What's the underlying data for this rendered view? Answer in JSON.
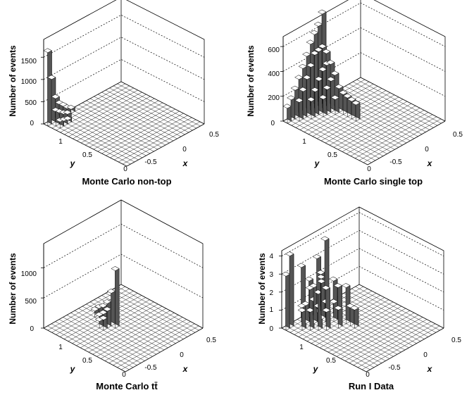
{
  "charts": [
    {
      "title": "Monte Carlo non-top",
      "zlabel": "Number of events",
      "ylabel": "y",
      "xlabel": "x",
      "y_ticks": [
        "0",
        "0.5",
        "1"
      ],
      "x_ticks": [
        "-0.5",
        "0",
        "0.5"
      ],
      "z_ticks": [
        "0",
        "500",
        "1000",
        "1500"
      ]
    },
    {
      "title": "Monte Carlo single top",
      "zlabel": "Number of events",
      "ylabel": "y",
      "xlabel": "x",
      "y_ticks": [
        "0",
        "0.5",
        "1"
      ],
      "x_ticks": [
        "-0.5",
        "0",
        "0.5"
      ],
      "z_ticks": [
        "0",
        "200",
        "400",
        "600"
      ]
    },
    {
      "title": "Monte Carlo tt̄",
      "zlabel": "Number of events",
      "ylabel": "y",
      "xlabel": "x",
      "y_ticks": [
        "0",
        "0.5",
        "1"
      ],
      "x_ticks": [
        "-0.5",
        "0",
        "0.5"
      ],
      "z_ticks": [
        "0",
        "500",
        "1000"
      ]
    },
    {
      "title": "Run I Data",
      "zlabel": "Number of events",
      "ylabel": "y",
      "xlabel": "x",
      "y_ticks": [
        "0",
        "0.5",
        "1"
      ],
      "x_ticks": [
        "-0.5",
        "0",
        "0.5"
      ],
      "z_ticks": [
        "0",
        "1",
        "2",
        "3",
        "4"
      ]
    }
  ],
  "chart_data": [
    {
      "type": "bar3d",
      "title": "Monte Carlo non-top",
      "zlabel": "Number of events",
      "ylabel": "y",
      "xlabel": "x",
      "zlim": [
        0,
        1900
      ],
      "bars": [
        {
          "u": 0,
          "v": 0,
          "z": 1650
        },
        {
          "u": 0,
          "v": 1,
          "z": 1000
        },
        {
          "u": 0,
          "v": 2,
          "z": 520
        },
        {
          "u": 0,
          "v": 3,
          "z": 340
        },
        {
          "u": 0,
          "v": 4,
          "z": 250
        },
        {
          "u": 0,
          "v": 5,
          "z": 150
        },
        {
          "u": 0,
          "v": 6,
          "z": 90
        },
        {
          "u": 1,
          "v": 1,
          "z": 320
        },
        {
          "u": 1,
          "v": 2,
          "z": 240
        },
        {
          "u": 1,
          "v": 3,
          "z": 170
        },
        {
          "u": 1,
          "v": 4,
          "z": 120
        },
        {
          "u": 2,
          "v": 1,
          "z": 140
        },
        {
          "u": 2,
          "v": 2,
          "z": 110
        },
        {
          "u": 2,
          "v": 3,
          "z": 80
        }
      ]
    },
    {
      "type": "bar3d",
      "title": "Monte Carlo single top",
      "zlabel": "Number of events",
      "ylabel": "y",
      "xlabel": "x",
      "zlim": [
        0,
        680
      ],
      "bars": [
        {
          "u": 0,
          "v": 0,
          "z": 120
        },
        {
          "u": 0,
          "v": 1,
          "z": 170
        },
        {
          "u": 0,
          "v": 2,
          "z": 230
        },
        {
          "u": 0,
          "v": 3,
          "z": 300
        },
        {
          "u": 0,
          "v": 4,
          "z": 370
        },
        {
          "u": 0,
          "v": 5,
          "z": 450
        },
        {
          "u": 0,
          "v": 6,
          "z": 530
        },
        {
          "u": 0,
          "v": 7,
          "z": 590
        },
        {
          "u": 0,
          "v": 8,
          "z": 640
        },
        {
          "u": 0,
          "v": 9,
          "z": 720
        },
        {
          "u": 1,
          "v": 2,
          "z": 150
        },
        {
          "u": 1,
          "v": 3,
          "z": 220
        },
        {
          "u": 1,
          "v": 4,
          "z": 300
        },
        {
          "u": 1,
          "v": 5,
          "z": 380
        },
        {
          "u": 1,
          "v": 6,
          "z": 460
        },
        {
          "u": 1,
          "v": 7,
          "z": 470
        },
        {
          "u": 1,
          "v": 8,
          "z": 480
        },
        {
          "u": 1,
          "v": 9,
          "z": 420
        },
        {
          "u": 2,
          "v": 4,
          "z": 140
        },
        {
          "u": 2,
          "v": 5,
          "z": 200
        },
        {
          "u": 2,
          "v": 6,
          "z": 270
        },
        {
          "u": 2,
          "v": 7,
          "z": 330
        },
        {
          "u": 2,
          "v": 8,
          "z": 360
        },
        {
          "u": 2,
          "v": 9,
          "z": 350
        },
        {
          "u": 3,
          "v": 6,
          "z": 140
        },
        {
          "u": 3,
          "v": 7,
          "z": 200
        },
        {
          "u": 3,
          "v": 8,
          "z": 250
        },
        {
          "u": 3,
          "v": 9,
          "z": 280
        },
        {
          "u": 4,
          "v": 8,
          "z": 120
        },
        {
          "u": 4,
          "v": 9,
          "z": 190
        },
        {
          "u": 5,
          "v": 9,
          "z": 160
        },
        {
          "u": 6,
          "v": 9,
          "z": 150
        },
        {
          "u": 7,
          "v": 9,
          "z": 140
        },
        {
          "u": 8,
          "v": 9,
          "z": 130
        }
      ]
    },
    {
      "type": "bar3d",
      "title": "Monte Carlo tt̄",
      "zlabel": "Number of events",
      "ylabel": "y",
      "xlabel": "x",
      "zlim": [
        0,
        1400
      ],
      "bars": [
        {
          "u": 3,
          "v": 9,
          "z": 100
        },
        {
          "u": 4,
          "v": 9,
          "z": 180
        },
        {
          "u": 5,
          "v": 9,
          "z": 230
        },
        {
          "u": 6,
          "v": 9,
          "z": 330
        },
        {
          "u": 7,
          "v": 9,
          "z": 540
        },
        {
          "u": 8,
          "v": 9,
          "z": 950
        },
        {
          "u": 5,
          "v": 8,
          "z": 120
        },
        {
          "u": 6,
          "v": 8,
          "z": 190
        },
        {
          "u": 7,
          "v": 8,
          "z": 280
        },
        {
          "u": 6,
          "v": 7,
          "z": 110
        },
        {
          "u": 7,
          "v": 7,
          "z": 170
        }
      ]
    },
    {
      "type": "bar3d",
      "title": "Run I Data",
      "zlabel": "Number of events",
      "ylabel": "y",
      "xlabel": "x",
      "zlim": [
        0,
        4.3
      ],
      "bars": [
        {
          "u": 0,
          "v": 0,
          "z": 3
        },
        {
          "u": 0,
          "v": 1,
          "z": 4
        },
        {
          "u": 0,
          "v": 4,
          "z": 3
        },
        {
          "u": 0,
          "v": 6,
          "z": 2
        },
        {
          "u": 0,
          "v": 8,
          "z": 3
        },
        {
          "u": 0,
          "v": 9,
          "z": 2
        },
        {
          "u": 1,
          "v": 3,
          "z": 1
        },
        {
          "u": 1,
          "v": 4,
          "z": 1
        },
        {
          "u": 1,
          "v": 6,
          "z": 1
        },
        {
          "u": 1,
          "v": 8,
          "z": 2
        },
        {
          "u": 1,
          "v": 9,
          "z": 4
        },
        {
          "u": 2,
          "v": 2,
          "z": 1
        },
        {
          "u": 2,
          "v": 4,
          "z": 2
        },
        {
          "u": 2,
          "v": 5,
          "z": 2
        },
        {
          "u": 2,
          "v": 7,
          "z": 2
        },
        {
          "u": 3,
          "v": 3,
          "z": 1
        },
        {
          "u": 3,
          "v": 5,
          "z": 1
        },
        {
          "u": 3,
          "v": 7,
          "z": 1
        },
        {
          "u": 3,
          "v": 9,
          "z": 2
        },
        {
          "u": 4,
          "v": 4,
          "z": 2
        },
        {
          "u": 4,
          "v": 6,
          "z": 2
        },
        {
          "u": 4,
          "v": 8,
          "z": 1
        },
        {
          "u": 5,
          "v": 5,
          "z": 1
        },
        {
          "u": 5,
          "v": 8,
          "z": 2
        },
        {
          "u": 6,
          "v": 7,
          "z": 1
        },
        {
          "u": 6,
          "v": 9,
          "z": 2
        },
        {
          "u": 7,
          "v": 9,
          "z": 1
        },
        {
          "u": 8,
          "v": 9,
          "z": 1
        }
      ]
    }
  ]
}
